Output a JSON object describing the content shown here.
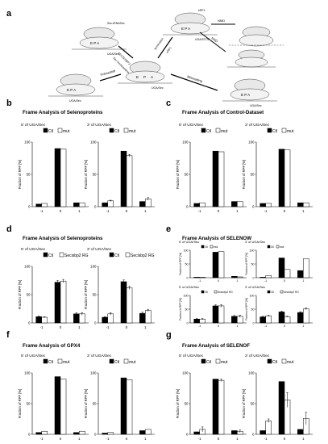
{
  "colors": {
    "ctl": "#000000",
    "mut": "#ffffff",
    "stroke": "#000000",
    "gray": "#888888"
  },
  "panel_a": {
    "label": "a",
    "site_labels": [
      "E",
      "P",
      "A"
    ],
    "center_label": "UGA/Sec",
    "top_left_labels": {
      "factor": "Sec-tRNASec",
      "codon": "UGA/Sec",
      "arrow1": "Sec incorporation",
      "arrow2": "SECIS/SBP2"
    },
    "top_right_labels": {
      "factor": "eRF1",
      "codon": "UGA/STOP",
      "arrow1": "termination",
      "arrow2": "eRF1"
    },
    "right_mid": {
      "arrow": "NMD"
    },
    "right_lower": {
      "arrow": "NSD"
    },
    "bottom_right": {
      "arrow": "Misreading",
      "codon": "UGA/Sec"
    },
    "bottom_left": {
      "arrow": "Frameshift",
      "codon": "UGA/Sec"
    }
  },
  "chart_data": [
    {
      "id": "b",
      "type": "bar",
      "title": "Frame Analysis of Selenoproteins",
      "subplots": [
        {
          "subtitle": "5' of UGA/Sec",
          "categories": [
            "-1",
            "0",
            "1"
          ],
          "ylabel": "Fraction of RPF [%]",
          "ylim": [
            0,
            100
          ],
          "yticks": [
            0,
            50,
            100
          ],
          "legend": [
            "Ctl",
            "mut"
          ],
          "series": [
            {
              "name": "Ctl",
              "values": [
                4,
                90,
                6
              ]
            },
            {
              "name": "mut",
              "values": [
                5,
                89,
                6
              ]
            }
          ]
        },
        {
          "subtitle": "3' of UGA/Sec",
          "categories": [
            "-1",
            "0",
            "1"
          ],
          "ylabel": "Fraction of RPF [%]",
          "ylim": [
            0,
            100
          ],
          "yticks": [
            0,
            50,
            100
          ],
          "legend": [
            "Ctl",
            "mut"
          ],
          "series": [
            {
              "name": "Ctl",
              "values": [
                6,
                86,
                8
              ]
            },
            {
              "name": "mut",
              "values": [
                9,
                79,
                12
              ],
              "errors": [
                1,
                2,
                2
              ]
            }
          ]
        }
      ]
    },
    {
      "id": "c",
      "type": "bar",
      "title": "Frame Analysis of Control-Dataset",
      "subplots": [
        {
          "subtitle": "5' of UGA/Sec",
          "categories": [
            "-1",
            "0",
            "1"
          ],
          "ylabel": "Fraction of RPF [%]",
          "ylim": [
            0,
            100
          ],
          "yticks": [
            0,
            50,
            100
          ],
          "legend": [
            "Ctl",
            "mut"
          ],
          "series": [
            {
              "name": "Ctl",
              "values": [
                5,
                86,
                8
              ]
            },
            {
              "name": "mut",
              "values": [
                6,
                85,
                8
              ]
            }
          ]
        },
        {
          "subtitle": "3' of UGA/Sec",
          "categories": [
            "-1",
            "0",
            "1"
          ],
          "ylabel": "Fraction of RPF [%]",
          "ylim": [
            0,
            100
          ],
          "yticks": [
            0,
            50,
            100
          ],
          "legend": [
            "Ctl",
            "mut"
          ],
          "series": [
            {
              "name": "Ctl",
              "values": [
                5,
                89,
                6
              ]
            },
            {
              "name": "mut",
              "values": [
                5,
                88,
                6
              ]
            }
          ]
        }
      ]
    },
    {
      "id": "d",
      "type": "bar",
      "title": "Frame Analysis of Selenoproteins",
      "subplots": [
        {
          "subtitle": "5' of UGA/Sec",
          "categories": [
            "-1",
            "0",
            "1"
          ],
          "ylabel": "Fraction of RPF [%]",
          "ylim": [
            0,
            100
          ],
          "yticks": [
            0,
            50,
            100
          ],
          "legend": [
            "Ctl",
            "Secisbp2 RG"
          ],
          "series": [
            {
              "name": "Ctl",
              "values": [
                11,
                72,
                16
              ],
              "errors": [
                1,
                3,
                2
              ]
            },
            {
              "name": "Secisbp2 RG",
              "values": [
                10,
                74,
                16
              ],
              "errors": [
                1,
                3,
                2
              ]
            }
          ]
        },
        {
          "subtitle": "3' of UGA/Sec",
          "categories": [
            "-1",
            "0",
            "1"
          ],
          "ylabel": "Fraction of RPF [%]",
          "ylim": [
            0,
            100
          ],
          "yticks": [
            0,
            50,
            100
          ],
          "legend": [
            "Ctl",
            "Secisbp2 RG"
          ],
          "series": [
            {
              "name": "Ctl",
              "values": [
                10,
                73,
                17
              ],
              "errors": [
                1,
                3,
                2
              ]
            },
            {
              "name": "Secisbp2 RG",
              "values": [
                16,
                62,
                22
              ],
              "errors": [
                2,
                3,
                2
              ]
            }
          ]
        }
      ]
    },
    {
      "id": "e",
      "type": "bar",
      "title": "Frame Analysis of SELENOW",
      "subplots": [
        {
          "subtitle": "5' of UGA/Sec",
          "categories": [
            "-1",
            "0",
            "1"
          ],
          "ylabel": "Fraction of RPF [%]",
          "ylim": [
            0,
            100
          ],
          "yticks": [
            0,
            50,
            100
          ],
          "legend": [
            "Ctl",
            "mut"
          ],
          "series": [
            {
              "name": "Ctl",
              "values": [
                2,
                93,
                5
              ]
            },
            {
              "name": "mut",
              "values": [
                2,
                95,
                3
              ]
            }
          ]
        },
        {
          "subtitle": "3' of UGA/Sec",
          "categories": [
            "-1",
            "0",
            "1"
          ],
          "ylabel": "Fraction of RPF [%]",
          "ylim": [
            0,
            100
          ],
          "yticks": [
            0,
            50,
            100
          ],
          "legend": [
            "Ctl",
            "mut"
          ],
          "series": [
            {
              "name": "Ctl",
              "values": [
                2,
                72,
                26
              ]
            },
            {
              "name": "mut",
              "values": [
                8,
                30,
                69
              ]
            }
          ]
        },
        {
          "subtitle": "5' of UGA/Sec",
          "categories": [
            "-1",
            "0",
            "1"
          ],
          "ylabel": "Fraction of RPF [%]",
          "ylim": [
            0,
            100
          ],
          "yticks": [
            0,
            50,
            100
          ],
          "legend": [
            "Ctl",
            "Secisbp2 RG"
          ],
          "series": [
            {
              "name": "Ctl",
              "values": [
                14,
                62,
                24
              ],
              "errors": [
                2,
                4,
                3
              ]
            },
            {
              "name": "Secisbp2 RG",
              "values": [
                14,
                62,
                24
              ],
              "errors": [
                2,
                5,
                4
              ]
            }
          ]
        },
        {
          "subtitle": "3' of UGA/Sec",
          "categories": [
            "-1",
            "0",
            "1"
          ],
          "ylabel": "Fraction of RPF [%]",
          "ylim": [
            0,
            100
          ],
          "yticks": [
            0,
            50,
            100
          ],
          "legend": [
            "Ctl",
            "Secisbp2 RG"
          ],
          "series": [
            {
              "name": "Ctl",
              "values": [
                22,
                40,
                38
              ],
              "errors": [
                2,
                3,
                3
              ]
            },
            {
              "name": "Secisbp2 RG",
              "values": [
                26,
                23,
                51
              ],
              "errors": [
                2,
                2,
                3
              ]
            }
          ]
        }
      ]
    },
    {
      "id": "f",
      "type": "bar",
      "title": "Frame Analysis of GPX4",
      "subplots": [
        {
          "subtitle": "5' of UGA/Sec",
          "categories": [
            "-1",
            "0",
            "1"
          ],
          "ylabel": "Fraction of RPF [%]",
          "ylim": [
            0,
            100
          ],
          "yticks": [
            0,
            50,
            100
          ],
          "legend": [
            "Ctl",
            "mut"
          ],
          "series": [
            {
              "name": "Ctl",
              "values": [
                3,
                94,
                3
              ]
            },
            {
              "name": "mut",
              "values": [
                5,
                90,
                5
              ]
            }
          ]
        },
        {
          "subtitle": "3' of UGA/Sec",
          "categories": [
            "-1",
            "0",
            "1"
          ],
          "ylabel": "Fraction of RPF [%]",
          "ylim": [
            0,
            100
          ],
          "yticks": [
            0,
            50,
            100
          ],
          "legend": [
            "Ctl",
            "mut"
          ],
          "series": [
            {
              "name": "Ctl",
              "values": [
                2,
                92,
                6
              ]
            },
            {
              "name": "mut",
              "values": [
                3,
                89,
                8
              ]
            }
          ]
        }
      ]
    },
    {
      "id": "g",
      "type": "bar",
      "title": "Frame Analysis of SELENOF",
      "subplots": [
        {
          "subtitle": "5' of UGA/Sec",
          "categories": [
            "-1",
            "0",
            "1"
          ],
          "ylabel": "Fraction of RPF [%]",
          "ylim": [
            0,
            100
          ],
          "yticks": [
            0,
            50,
            100
          ],
          "legend": [
            "Ctl",
            "mut"
          ],
          "series": [
            {
              "name": "Ctl",
              "values": [
                4,
                90,
                6
              ]
            },
            {
              "name": "mut",
              "values": [
                8,
                88,
                5
              ],
              "errors": [
                4,
                2,
                2
              ]
            }
          ]
        },
        {
          "subtitle": "3' of UGA/Sec",
          "categories": [
            "-1",
            "0",
            "1"
          ],
          "ylabel": "Fraction of RPF [%]",
          "ylim": [
            0,
            100
          ],
          "yticks": [
            0,
            50,
            100
          ],
          "legend": [
            "Ctl",
            "mut"
          ],
          "series": [
            {
              "name": "Ctl",
              "values": [
                6,
                86,
                8
              ]
            },
            {
              "name": "mut",
              "values": [
                22,
                56,
                26
              ],
              "errors": [
                3,
                12,
                10
              ]
            }
          ]
        }
      ]
    }
  ]
}
